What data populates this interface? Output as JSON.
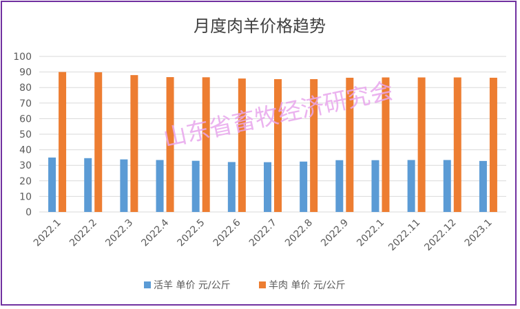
{
  "chart_data": {
    "type": "bar",
    "title": "月度肉羊价格趋势",
    "categories": [
      "2022.1",
      "2022.2",
      "2022.3",
      "2022.4",
      "2022.5",
      "2022.6",
      "2022.7",
      "2022.8",
      "2022.9",
      "2022.1",
      "2022.11",
      "2022.12",
      "2023.1"
    ],
    "series": [
      {
        "name": "活羊 单价 元/公斤",
        "color": "#5b9bd5",
        "values": [
          35.0,
          34.6,
          33.8,
          33.4,
          32.9,
          32.1,
          32.0,
          32.4,
          33.3,
          33.3,
          33.4,
          33.4,
          32.8
        ]
      },
      {
        "name": "羊肉 单价 元/公斤",
        "color": "#ed7d31",
        "values": [
          90.0,
          89.8,
          88.0,
          86.7,
          86.6,
          85.8,
          85.4,
          85.4,
          86.3,
          86.5,
          86.5,
          86.5,
          86.3
        ]
      }
    ],
    "ylim": [
      0,
      100
    ],
    "yticks": [
      0,
      10,
      20,
      30,
      40,
      50,
      60,
      70,
      80,
      90,
      100
    ],
    "grid": true,
    "legend": "bottom"
  },
  "watermark": "山东省畜牧经济研究会",
  "colors": {
    "border": "#7030a0",
    "grid": "#d9d9d9",
    "text": "#595959",
    "watermark": "#e7a6ec"
  }
}
